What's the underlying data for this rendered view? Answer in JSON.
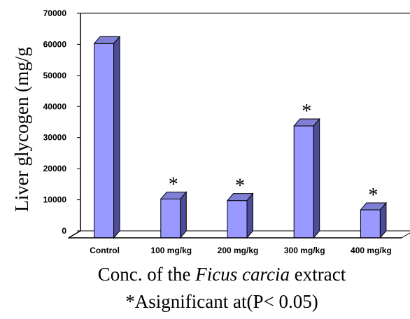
{
  "chart_data": {
    "type": "bar",
    "categories": [
      "Control",
      "100 mg/kg",
      "200 mg/kg",
      "300 mg/kg",
      "400 mg/kg"
    ],
    "values": [
      62500,
      12500,
      12000,
      36000,
      9000
    ],
    "significance_markers": [
      "",
      "*",
      "*",
      "*",
      "*"
    ],
    "ylabel": "Liver glycogen (mg/g",
    "xlabel": {
      "prefix": "Conc. of the ",
      "italic": "Ficus carcia",
      "suffix": " extract"
    },
    "note": "*Asignificant at(P< 0.05)",
    "ylim": [
      0,
      70000
    ],
    "yticks": [
      0,
      10000,
      20000,
      30000,
      40000,
      50000,
      60000,
      70000
    ],
    "grid": false,
    "legend": "none",
    "colors": {
      "bar_front": "#9999ff",
      "bar_top": "#7f7fd6",
      "bar_side": "#4c4c99",
      "wall": "#ffffff",
      "axis": "#000000"
    }
  }
}
